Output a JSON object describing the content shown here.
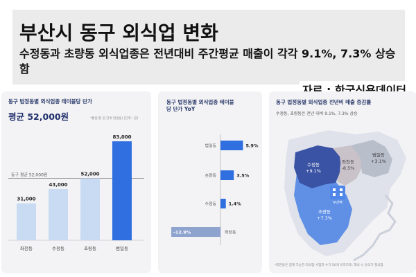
{
  "header": {
    "title": "부산시 동구 외식업 변화",
    "subtitle": "수정동과 초량동 외식업종은 전년대비 주간평균 매출이 각각 9.1%, 7.3% 상승함",
    "source": "자료 : 한국신용데이터"
  },
  "panel1": {
    "title": "동구 법정동별 외식업종 테이블당 단가",
    "avg_label": "평균 52,000원",
    "note": "*통일(천 원 단위 반올림) [단위 : 원]",
    "reference_label": "동구 평균 52,000원"
  },
  "panel2": {
    "title": "동구 법정동별 외식업종 테이블당 단가 YoY"
  },
  "panel3": {
    "title": "동구 법정동별 외식업종 전년비 매출 증감률",
    "desc": "수정동, 초량동은 전년 대비 9.1%, 7.3% 상승",
    "footnote": "*좌천동은 집계 가능한 외식업 사업자 수가 50개 이하므로, 해석 시 유의가 필요함",
    "map_labels": [
      {
        "name": "수정동",
        "value": "+9.1%"
      },
      {
        "name": "좌천동",
        "value": "-8.5%"
      },
      {
        "name": "범일동",
        "value": "+3.1%"
      },
      {
        "name": "초량동",
        "value": "+7.3%"
      }
    ],
    "landmark": "부산역"
  },
  "colors": {
    "bar_light": "#c9dbf3",
    "bar_dark": "#2f6fe0",
    "neg_bar": "#8fa3cf",
    "map_dark": "#3a53a4",
    "map_mid": "#5f90e6",
    "map_light": "#c2c6d3",
    "map_grey": "#d7d7db"
  },
  "chart_data": [
    {
      "type": "bar",
      "categories": [
        "좌천동",
        "수정동",
        "초량동",
        "범일동"
      ],
      "values": [
        31000,
        43000,
        52000,
        83000
      ],
      "value_labels": [
        "31,000",
        "43,000",
        "52,000",
        "83,000"
      ],
      "title": "동구 법정동별 외식업종 테이블당 단가",
      "reference_line": 52000,
      "ylim": [
        0,
        90000
      ]
    },
    {
      "type": "bar",
      "orientation": "horizontal",
      "categories": [
        "범일동",
        "초량동",
        "수정동",
        "좌천동"
      ],
      "values": [
        5.9,
        3.5,
        1.4,
        -12.9
      ],
      "value_labels": [
        "5.9%",
        "3.5%",
        "1.4%",
        "-12.9%"
      ],
      "title": "동구 법정동별 외식업종 테이블당 단가 YoY"
    }
  ]
}
